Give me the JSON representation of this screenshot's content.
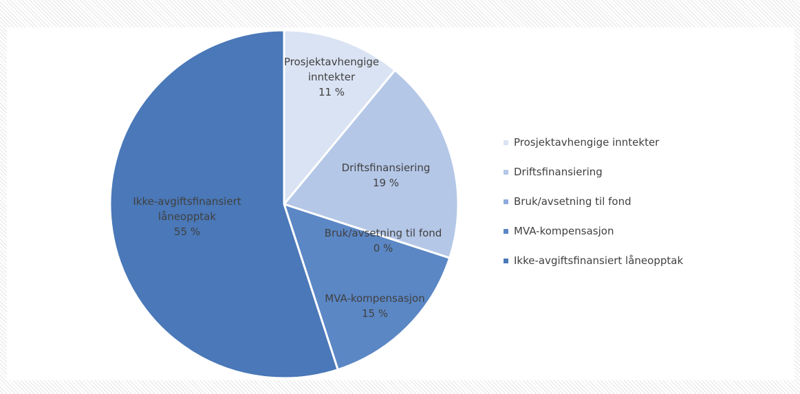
{
  "chart_data": {
    "type": "pie",
    "categories": [
      "Prosjektavhengige inntekter",
      "Driftsfinansiering",
      "Bruk/avsetning til fond",
      "MVA-kompensasjon",
      "Ikke-avgiftsfinansiert låneopptak"
    ],
    "values": [
      11,
      19,
      0,
      15,
      55
    ],
    "value_labels": [
      "11 %",
      "19 %",
      "0 %",
      "15 %",
      "55 %"
    ],
    "colors": [
      "#dae3f3",
      "#b4c7e7",
      "#8faadc",
      "#5b87c5",
      "#4a78b8"
    ],
    "legend": "right"
  }
}
